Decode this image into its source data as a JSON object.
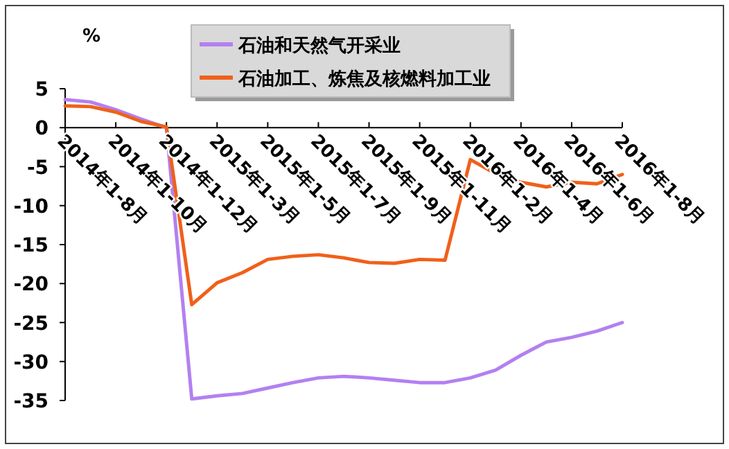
{
  "chart_data": {
    "type": "line",
    "ylabel": "%",
    "categories": [
      "2014年1-8月",
      null,
      "2014年1-10月",
      null,
      "2014年1-12月",
      null,
      "2015年1-3月",
      null,
      "2015年1-5月",
      null,
      "2015年1-7月",
      null,
      "2015年1-9月",
      null,
      "2015年1-11月",
      null,
      "2016年1-2月",
      null,
      "2016年1-4月",
      null,
      "2016年1-6月",
      null,
      "2016年1-8月"
    ],
    "series": [
      {
        "name": "石油和天然气开采业",
        "color": "#b380f0",
        "values": [
          3.6,
          3.3,
          2.3,
          1.1,
          0,
          -34.8,
          -34.4,
          -34.1,
          -33.4,
          -32.7,
          -32.1,
          -31.9,
          -32.1,
          -32.4,
          -32.7,
          -32.7,
          -32.1,
          -31.1,
          -29.2,
          -27.5,
          -26.9,
          -26.1,
          -25.0
        ]
      },
      {
        "name": "石油加工、炼焦及核燃料加工业",
        "color": "#f0601a",
        "values": [
          2.8,
          2.7,
          2.0,
          0.8,
          0.1,
          -22.7,
          -19.9,
          -18.6,
          -16.9,
          -16.5,
          -16.3,
          -16.7,
          -17.3,
          -17.4,
          -16.9,
          -17.0,
          -4.1,
          -5.9,
          -7.0,
          -7.6,
          -7.0,
          -7.2,
          -6.0
        ]
      }
    ],
    "ylim": [
      -35,
      5
    ],
    "yticks": [
      5,
      0,
      -5,
      -10,
      -15,
      -20,
      -25,
      -30,
      -35
    ],
    "grid": false,
    "legend": "top",
    "line_style": "solid",
    "marker": "none"
  }
}
